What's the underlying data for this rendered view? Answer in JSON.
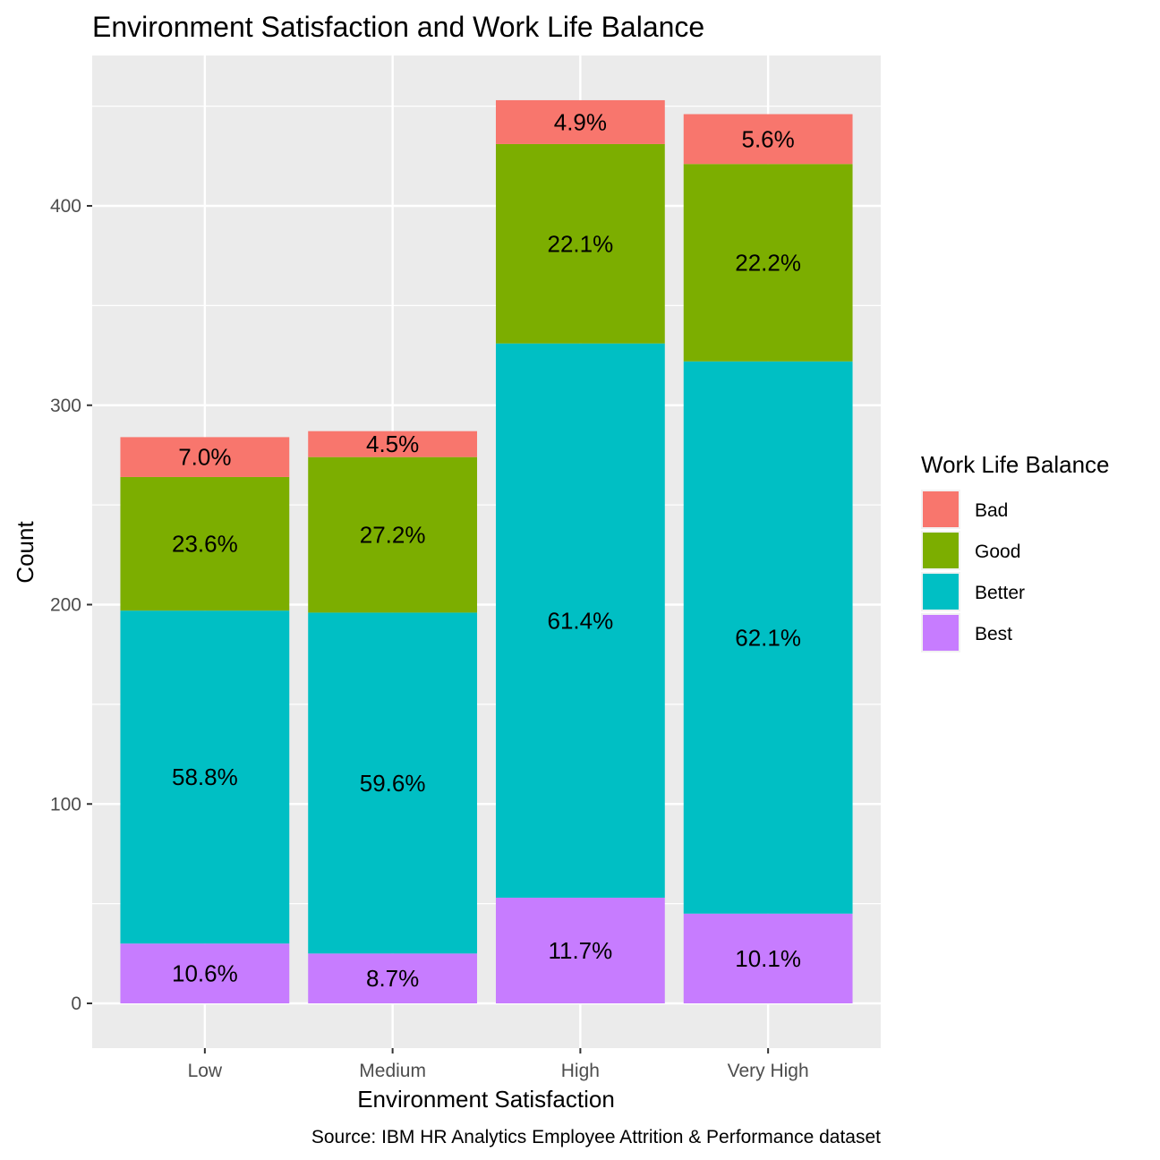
{
  "chart_data": {
    "type": "bar",
    "stacked": true,
    "title": "Environment Satisfaction and Work Life Balance",
    "xlabel": "Environment Satisfaction",
    "ylabel": "Count",
    "caption": "Source: IBM HR Analytics Employee Attrition & Performance dataset",
    "categories": [
      "Low",
      "Medium",
      "High",
      "Very High"
    ],
    "ylim": [
      -20,
      472
    ],
    "yticks": [
      0,
      100,
      200,
      300,
      400
    ],
    "grid": true,
    "legend": {
      "title": "Work Life Balance",
      "position": "right"
    },
    "series": [
      {
        "name": "Best",
        "color": "#C77CFF",
        "values": [
          30,
          25,
          53,
          45
        ],
        "labels": [
          "10.6%",
          "8.7%",
          "11.7%",
          "10.1%"
        ]
      },
      {
        "name": "Better",
        "color": "#00BFC4",
        "values": [
          167,
          171,
          278,
          277
        ],
        "labels": [
          "58.8%",
          "59.6%",
          "61.4%",
          "62.1%"
        ]
      },
      {
        "name": "Good",
        "color": "#7CAE00",
        "values": [
          67,
          78,
          100,
          99
        ],
        "labels": [
          "23.6%",
          "27.2%",
          "22.1%",
          "22.2%"
        ]
      },
      {
        "name": "Bad",
        "color": "#F8766D",
        "values": [
          20,
          13,
          22,
          25
        ],
        "labels": [
          "7.0%",
          "4.5%",
          "4.9%",
          "5.6%"
        ]
      }
    ],
    "legend_order": [
      "Bad",
      "Good",
      "Better",
      "Best"
    ]
  }
}
